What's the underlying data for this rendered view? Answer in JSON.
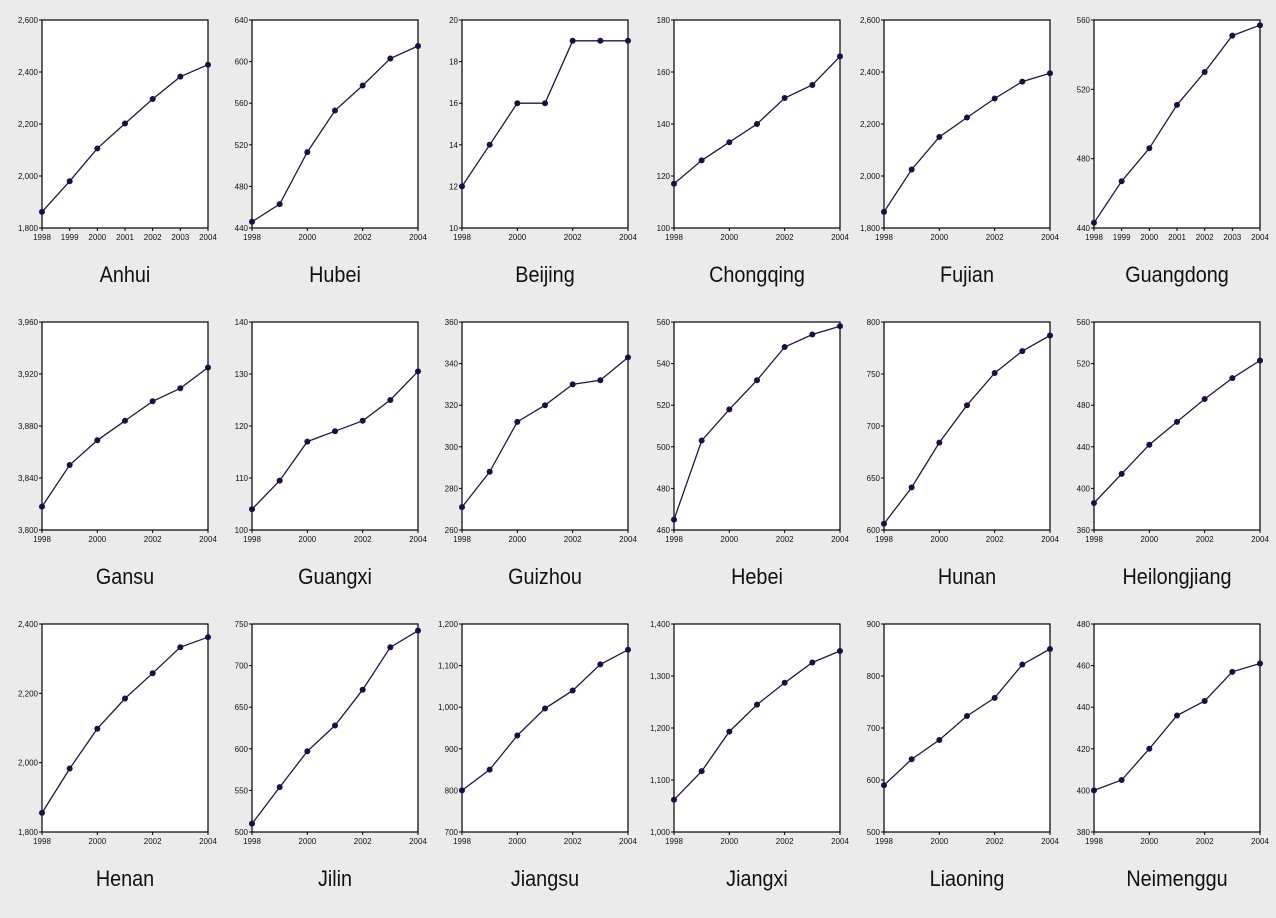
{
  "chart_data": [
    {
      "type": "line",
      "title": "Anhui",
      "x": [
        1998,
        1999,
        2000,
        2001,
        2002,
        2003,
        2004
      ],
      "values": [
        1862,
        1980,
        2106,
        2202,
        2296,
        2382,
        2428
      ],
      "ylim": [
        1800,
        2600
      ],
      "yticks": [
        "1,800",
        "2,000",
        "2,200",
        "2,400",
        "2,600"
      ],
      "xticks": [
        "1998",
        "1999",
        "2000",
        "2001",
        "2002",
        "2003",
        "2004"
      ]
    },
    {
      "type": "line",
      "title": "Hubei",
      "x": [
        1998,
        1999,
        2000,
        2001,
        2002,
        2003,
        2004
      ],
      "values": [
        446,
        463,
        513,
        553,
        577,
        603,
        615
      ],
      "ylim": [
        440,
        640
      ],
      "yticks": [
        "440",
        "480",
        "520",
        "560",
        "600",
        "640"
      ],
      "xticks": [
        "1998",
        "2000",
        "2002",
        "2004"
      ]
    },
    {
      "type": "line",
      "title": "Beijing",
      "x": [
        1998,
        1999,
        2000,
        2001,
        2002,
        2003,
        2004
      ],
      "values": [
        12,
        14,
        16,
        16,
        19,
        19,
        19
      ],
      "ylim": [
        10,
        20
      ],
      "yticks": [
        "10",
        "12",
        "14",
        "16",
        "18",
        "20"
      ],
      "xticks": [
        "1998",
        "2000",
        "2002",
        "2004"
      ]
    },
    {
      "type": "line",
      "title": "Chongqing",
      "x": [
        1998,
        1999,
        2000,
        2001,
        2002,
        2003,
        2004
      ],
      "values": [
        117,
        126,
        133,
        140,
        150,
        155,
        166
      ],
      "ylim": [
        100,
        180
      ],
      "yticks": [
        "100",
        "120",
        "140",
        "160",
        "180"
      ],
      "xticks": [
        "1998",
        "2000",
        "2002",
        "2004"
      ]
    },
    {
      "type": "line",
      "title": "Fujian",
      "x": [
        1998,
        1999,
        2000,
        2001,
        2002,
        2003,
        2004
      ],
      "values": [
        1862,
        2025,
        2150,
        2225,
        2298,
        2363,
        2395
      ],
      "ylim": [
        1800,
        2600
      ],
      "yticks": [
        "1,800",
        "2,000",
        "2,200",
        "2,400",
        "2,600"
      ],
      "xticks": [
        "1998",
        "2000",
        "2002",
        "2004"
      ]
    },
    {
      "type": "line",
      "title": "Guangdong",
      "x": [
        1998,
        1999,
        2000,
        2001,
        2002,
        2003,
        2004
      ],
      "values": [
        443,
        467,
        486,
        511,
        530,
        551,
        557
      ],
      "ylim": [
        440,
        560
      ],
      "yticks": [
        "440",
        "480",
        "520",
        "560"
      ],
      "xticks": [
        "1998",
        "1999",
        "2000",
        "2001",
        "2002",
        "2003",
        "2004"
      ]
    },
    {
      "type": "line",
      "title": "Gansu",
      "x": [
        1998,
        1999,
        2000,
        2001,
        2002,
        2003,
        2004
      ],
      "values": [
        3818,
        3850,
        3869,
        3884,
        3899,
        3909,
        3925
      ],
      "ylim": [
        3800,
        3960
      ],
      "yticks": [
        "3,800",
        "3,840",
        "3,880",
        "3,920",
        "3,960"
      ],
      "xticks": [
        "1998",
        "2000",
        "2002",
        "2004"
      ]
    },
    {
      "type": "line",
      "title": "Guangxi",
      "x": [
        1998,
        1999,
        2000,
        2001,
        2002,
        2003,
        2004
      ],
      "values": [
        104,
        109.5,
        117,
        119,
        121,
        125,
        130.5
      ],
      "ylim": [
        100,
        140
      ],
      "yticks": [
        "100",
        "110",
        "120",
        "130",
        "140"
      ],
      "xticks": [
        "1998",
        "2000",
        "2002",
        "2004"
      ]
    },
    {
      "type": "line",
      "title": "Guizhou",
      "x": [
        1998,
        1999,
        2000,
        2001,
        2002,
        2003,
        2004
      ],
      "values": [
        271,
        288,
        312,
        320,
        330,
        332,
        343
      ],
      "ylim": [
        260,
        360
      ],
      "yticks": [
        "260",
        "280",
        "300",
        "320",
        "340",
        "360"
      ],
      "xticks": [
        "1998",
        "2000",
        "2002",
        "2004"
      ]
    },
    {
      "type": "line",
      "title": "Hebei",
      "x": [
        1998,
        1999,
        2000,
        2001,
        2002,
        2003,
        2004
      ],
      "values": [
        465,
        503,
        518,
        532,
        548,
        554,
        558
      ],
      "ylim": [
        460,
        560
      ],
      "yticks": [
        "460",
        "480",
        "500",
        "520",
        "540",
        "560"
      ],
      "xticks": [
        "1998",
        "2000",
        "2002",
        "2004"
      ]
    },
    {
      "type": "line",
      "title": "Hunan",
      "x": [
        1998,
        1999,
        2000,
        2001,
        2002,
        2003,
        2004
      ],
      "values": [
        606,
        641,
        684,
        720,
        751,
        772,
        787
      ],
      "ylim": [
        600,
        800
      ],
      "yticks": [
        "600",
        "650",
        "700",
        "750",
        "800"
      ],
      "xticks": [
        "1998",
        "2000",
        "2002",
        "2004"
      ]
    },
    {
      "type": "line",
      "title": "Heilongjiang",
      "x": [
        1998,
        1999,
        2000,
        2001,
        2002,
        2003,
        2004
      ],
      "values": [
        386,
        414,
        442,
        464,
        486,
        506,
        523
      ],
      "ylim": [
        360,
        560
      ],
      "yticks": [
        "360",
        "400",
        "440",
        "480",
        "520",
        "560"
      ],
      "xticks": [
        "1998",
        "2000",
        "2002",
        "2004"
      ]
    },
    {
      "type": "line",
      "title": "Henan",
      "x": [
        1998,
        1999,
        2000,
        2001,
        2002,
        2003,
        2004
      ],
      "values": [
        1855,
        1983,
        2098,
        2185,
        2258,
        2333,
        2362
      ],
      "ylim": [
        1800,
        2400
      ],
      "yticks": [
        "1,800",
        "2,000",
        "2,200",
        "2,400"
      ],
      "xticks": [
        "1998",
        "2000",
        "2002",
        "2004"
      ]
    },
    {
      "type": "line",
      "title": "Jilin",
      "x": [
        1998,
        1999,
        2000,
        2001,
        2002,
        2003,
        2004
      ],
      "values": [
        510,
        554,
        597,
        628,
        671,
        722,
        742
      ],
      "ylim": [
        500,
        750
      ],
      "yticks": [
        "500",
        "550",
        "600",
        "650",
        "700",
        "750"
      ],
      "xticks": [
        "1998",
        "2000",
        "2002",
        "2004"
      ]
    },
    {
      "type": "line",
      "title": "Jiangsu",
      "x": [
        1998,
        1999,
        2000,
        2001,
        2002,
        2003,
        2004
      ],
      "values": [
        800,
        850,
        932,
        997,
        1040,
        1103,
        1138
      ],
      "ylim": [
        700,
        1200
      ],
      "yticks": [
        "700",
        "800",
        "900",
        "1,000",
        "1,100",
        "1,200"
      ],
      "xticks": [
        "1998",
        "2000",
        "2002",
        "2004"
      ]
    },
    {
      "type": "line",
      "title": "Jiangxi",
      "x": [
        1998,
        1999,
        2000,
        2001,
        2002,
        2003,
        2004
      ],
      "values": [
        1062,
        1117,
        1193,
        1245,
        1287,
        1326,
        1348
      ],
      "ylim": [
        1000,
        1400
      ],
      "yticks": [
        "1,000",
        "1,100",
        "1,200",
        "1,300",
        "1,400"
      ],
      "xticks": [
        "1998",
        "2000",
        "2002",
        "2004"
      ]
    },
    {
      "type": "line",
      "title": "Liaoning",
      "x": [
        1998,
        1999,
        2000,
        2001,
        2002,
        2003,
        2004
      ],
      "values": [
        590,
        640,
        677,
        723,
        758,
        822,
        852
      ],
      "ylim": [
        500,
        900
      ],
      "yticks": [
        "500",
        "600",
        "700",
        "800",
        "900"
      ],
      "xticks": [
        "1998",
        "2000",
        "2002",
        "2004"
      ]
    },
    {
      "type": "line",
      "title": "Neimenggu",
      "x": [
        1998,
        1999,
        2000,
        2001,
        2002,
        2003,
        2004
      ],
      "values": [
        400,
        405,
        420,
        436,
        443,
        457,
        461
      ],
      "ylim": [
        380,
        480
      ],
      "yticks": [
        "380",
        "400",
        "420",
        "440",
        "460",
        "480"
      ],
      "xticks": [
        "1998",
        "2000",
        "2002",
        "2004"
      ]
    }
  ],
  "style": {
    "line_color": "#1a1a4a",
    "marker_color": "#12124a",
    "axis_color": "#000000",
    "plot_bg": "#ffffff",
    "page_bg": "#ebebeb"
  }
}
